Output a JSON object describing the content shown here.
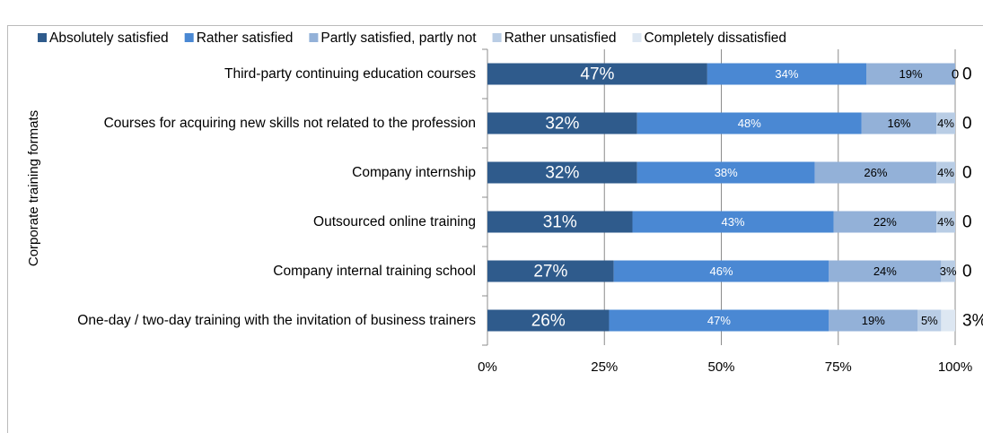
{
  "chart_data": {
    "type": "stacked_bar_horizontal",
    "y_axis_label": "Corporate training formats",
    "categories": [
      "Third-party continuing education courses",
      "Courses for acquiring new skills not related to the profession",
      "Company internship",
      "Outsourced online training",
      "Company internal training school",
      "One-day / two-day training with the invitation of business trainers"
    ],
    "series": [
      {
        "name": "Absolutely satisfied",
        "color": "#2f5b8c",
        "values": [
          47,
          32,
          32,
          31,
          27,
          26
        ],
        "value_labels": [
          "47%",
          "32%",
          "32%",
          "31%",
          "27%",
          "26%"
        ]
      },
      {
        "name": "Rather satisfied",
        "color": "#4a88d3",
        "values": [
          34,
          48,
          38,
          43,
          46,
          47
        ],
        "value_labels": [
          "34%",
          "48%",
          "38%",
          "43%",
          "46%",
          "47%"
        ]
      },
      {
        "name": "Partly satisfied, partly not",
        "color": "#93b1d8",
        "values": [
          19,
          16,
          26,
          22,
          24,
          19
        ],
        "value_labels": [
          "19%",
          "16%",
          "26%",
          "22%",
          "24%",
          "19%"
        ]
      },
      {
        "name": "Rather unsatisfied",
        "color": "#b9cde5",
        "values": [
          0,
          4,
          4,
          4,
          3,
          5
        ],
        "value_labels": [
          "0",
          "4%",
          "4%",
          "4%",
          "3%",
          "5%"
        ]
      },
      {
        "name": "Completely dissatisfied",
        "color": "#dde7f2",
        "values": [
          0,
          0,
          0,
          0,
          0,
          3
        ],
        "value_labels": [
          "0",
          "0",
          "0",
          "0",
          "0",
          "3%"
        ]
      }
    ],
    "xlim": [
      0,
      100
    ],
    "xticks": [
      {
        "value": 0,
        "label": "0%"
      },
      {
        "value": 25,
        "label": "25%"
      },
      {
        "value": 50,
        "label": "50%"
      },
      {
        "value": 75,
        "label": "75%"
      },
      {
        "value": 100,
        "label": "100%"
      }
    ],
    "grid": true,
    "legend": "top"
  }
}
